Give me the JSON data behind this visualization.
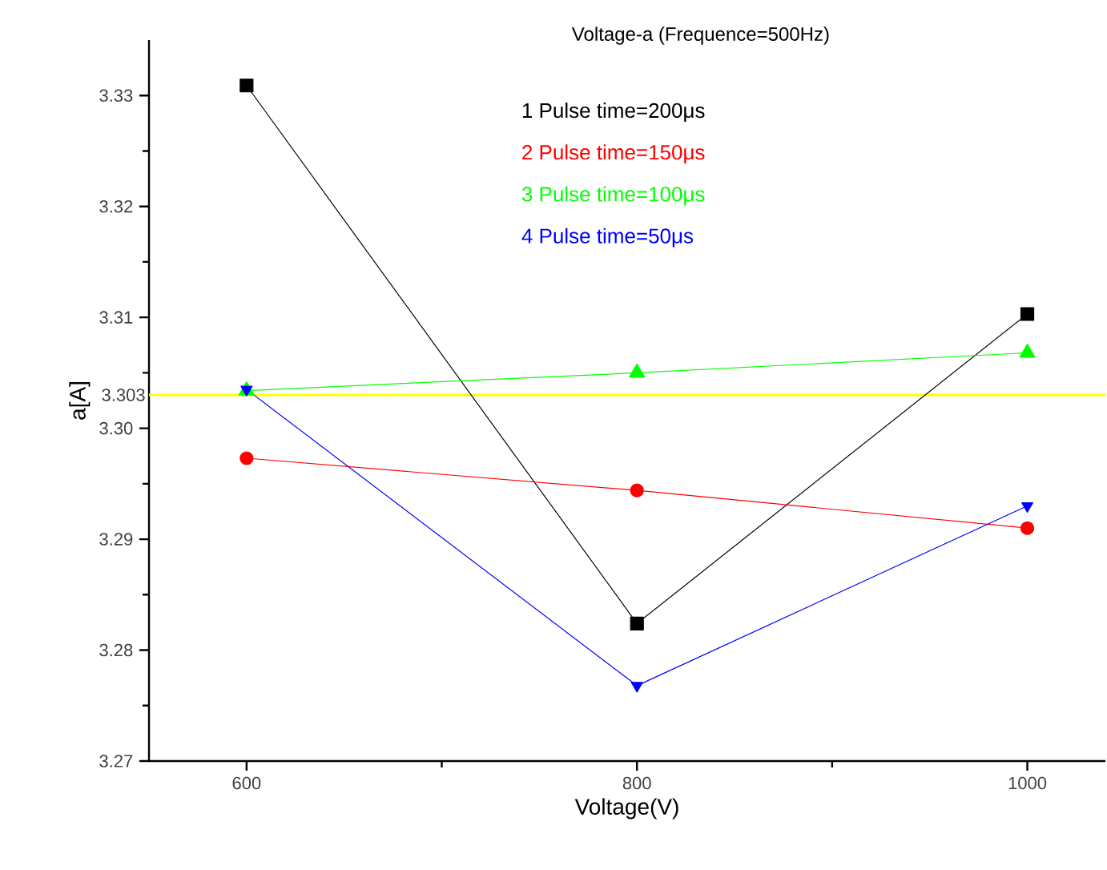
{
  "chart_data": {
    "type": "line",
    "title": "Voltage-a (Frequence=500Hz)",
    "xlabel": "Voltage(V)",
    "ylabel": "a[A]",
    "x": [
      600,
      800,
      1000
    ],
    "series": [
      {
        "name": "1 Pulse time=200μs",
        "color": "#000000",
        "marker": "square",
        "values": [
          3.3309,
          3.2824,
          3.3103
        ]
      },
      {
        "name": "2 Pulse time=150μs",
        "color": "#ff0000",
        "marker": "circle",
        "values": [
          3.2973,
          3.2944,
          3.291
        ]
      },
      {
        "name": "3 Pulse time=100μs",
        "color": "#00ff00",
        "marker": "triangle",
        "values": [
          3.3034,
          3.305,
          3.3068
        ]
      },
      {
        "name": "4 Pulse time=50μs",
        "color": "#0000ff",
        "marker": "triangle-down",
        "values": [
          3.3035,
          3.2768,
          3.293
        ]
      }
    ],
    "xlim": [
      550,
      1040
    ],
    "ylim": [
      3.27,
      3.335
    ],
    "xticks": [
      600,
      800,
      1000
    ],
    "yticks": [
      3.27,
      3.28,
      3.29,
      {
        "value": 3.3,
        "label": "3.30"
      },
      3.31,
      3.32,
      3.33
    ],
    "ref_lines": [
      {
        "axis": "y",
        "value": 3.303,
        "label": "3.303",
        "color": "#ffff00"
      }
    ],
    "legend": "top",
    "grid": false
  }
}
